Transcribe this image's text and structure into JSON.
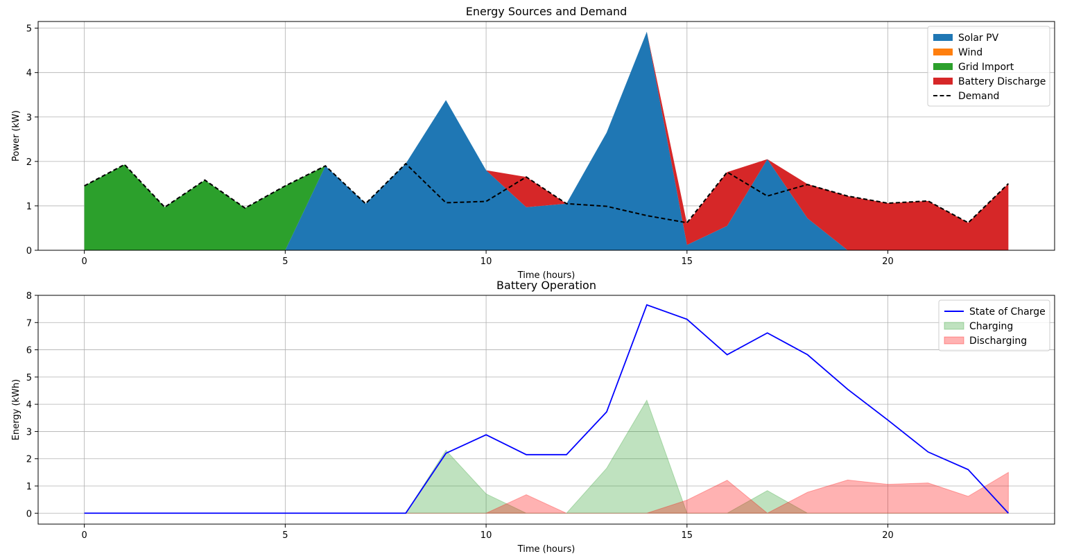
{
  "chart_data": [
    {
      "type": "area",
      "stacked": true,
      "title": "Energy Sources and Demand",
      "xlabel": "Time (hours)",
      "ylabel": "Power (kW)",
      "xlim": [
        -1.15,
        24.15
      ],
      "ylim": [
        0,
        5.15
      ],
      "xticks": [
        0,
        5,
        10,
        15,
        20
      ],
      "yticks": [
        0,
        1,
        2,
        3,
        4,
        5
      ],
      "grid": true,
      "legend_position": "top-right",
      "x": [
        0,
        1,
        2,
        3,
        4,
        5,
        6,
        7,
        8,
        9,
        10,
        11,
        12,
        13,
        14,
        15,
        16,
        17,
        18,
        19,
        20,
        21,
        22,
        23
      ],
      "series": [
        {
          "name": "Solar PV",
          "color": "#1f77b4",
          "kind": "area",
          "values": [
            0,
            0,
            0,
            0,
            0,
            0,
            1.9,
            1.05,
            1.95,
            3.38,
            1.8,
            0.97,
            1.05,
            2.65,
            4.92,
            0.12,
            0.55,
            2.05,
            0.72,
            0,
            0,
            0,
            0,
            0
          ]
        },
        {
          "name": "Wind",
          "color": "#ff7f0e",
          "kind": "area",
          "values": [
            0,
            0,
            0,
            0,
            0,
            0,
            0,
            0,
            0,
            0,
            0,
            0,
            0,
            0,
            0,
            0,
            0,
            0,
            0,
            0,
            0,
            0,
            0,
            0
          ]
        },
        {
          "name": "Grid Import",
          "color": "#2ca02c",
          "kind": "area",
          "values": [
            1.45,
            1.93,
            0.97,
            1.58,
            0.95,
            1.45,
            0,
            0,
            0,
            0,
            0,
            0,
            0,
            0,
            0,
            0,
            0,
            0,
            0,
            0,
            0,
            0,
            0,
            0
          ]
        },
        {
          "name": "Battery Discharge",
          "color": "#d62728",
          "kind": "area",
          "values": [
            0,
            0,
            0,
            0,
            0,
            0,
            0,
            0,
            0,
            0,
            0,
            0.68,
            0,
            0,
            0,
            0.48,
            1.21,
            0,
            0.77,
            1.22,
            1.06,
            1.11,
            0.62,
            1.5
          ]
        },
        {
          "name": "Demand",
          "color": "#000000",
          "kind": "dashed-line",
          "values": [
            1.45,
            1.93,
            0.97,
            1.58,
            0.95,
            1.45,
            1.9,
            1.05,
            1.95,
            1.07,
            1.1,
            1.65,
            1.05,
            0.99,
            0.78,
            0.62,
            1.76,
            1.22,
            1.48,
            1.22,
            1.06,
            1.11,
            0.62,
            1.5
          ]
        }
      ]
    },
    {
      "type": "line",
      "title": "Battery Operation",
      "xlabel": "Time (hours)",
      "ylabel": "Energy (kWh)",
      "xlim": [
        -1.15,
        24.15
      ],
      "ylim": [
        -0.4,
        8.0
      ],
      "xticks": [
        0,
        5,
        10,
        15,
        20
      ],
      "yticks": [
        0,
        1,
        2,
        3,
        4,
        5,
        6,
        7,
        8
      ],
      "grid": true,
      "legend_position": "top-right",
      "x": [
        0,
        1,
        2,
        3,
        4,
        5,
        6,
        7,
        8,
        9,
        10,
        11,
        12,
        13,
        14,
        15,
        16,
        17,
        18,
        19,
        20,
        21,
        22,
        23
      ],
      "series": [
        {
          "name": "State of Charge",
          "color": "#0000ff",
          "kind": "line",
          "values": [
            0,
            0,
            0,
            0,
            0,
            0,
            0,
            0,
            0,
            2.2,
            2.88,
            2.15,
            2.15,
            3.72,
            7.65,
            7.12,
            5.82,
            6.62,
            5.82,
            4.55,
            3.42,
            2.25,
            1.6,
            0
          ]
        },
        {
          "name": "Charging",
          "color": "#2ca02c",
          "kind": "fill",
          "values": [
            0,
            0,
            0,
            0,
            0,
            0,
            0,
            0,
            0,
            2.31,
            0.71,
            0,
            0,
            1.65,
            4.15,
            0,
            0,
            0.83,
            0,
            0,
            0,
            0,
            0,
            0
          ]
        },
        {
          "name": "Discharging",
          "color": "#ff0000",
          "kind": "fill",
          "values": [
            0,
            0,
            0,
            0,
            0,
            0,
            0,
            0,
            0,
            0,
            0,
            0.68,
            0,
            0,
            0,
            0.48,
            1.21,
            0,
            0.77,
            1.22,
            1.06,
            1.11,
            0.62,
            1.5
          ]
        }
      ]
    }
  ]
}
